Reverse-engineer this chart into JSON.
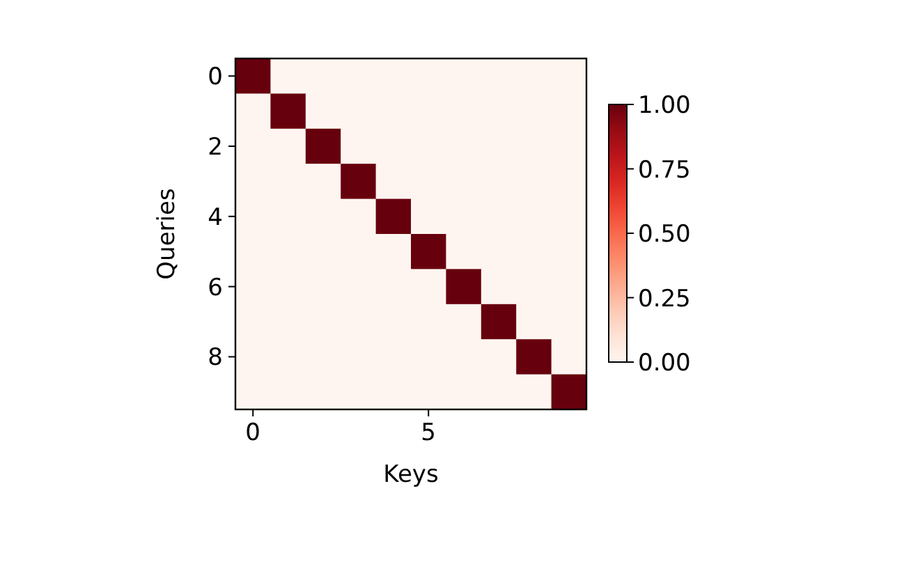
{
  "chart_data": {
    "type": "heatmap",
    "xlabel": "Keys",
    "ylabel": "Queries",
    "categories": [
      "0",
      null,
      null,
      null,
      null,
      "5",
      null,
      null,
      null,
      null
    ],
    "y_categories": [
      "0",
      null,
      "2",
      null,
      "4",
      null,
      "6",
      null,
      "8",
      null
    ],
    "cells": [
      [
        1,
        0,
        0,
        0,
        0,
        0,
        0,
        0,
        0,
        0
      ],
      [
        0,
        1,
        0,
        0,
        0,
        0,
        0,
        0,
        0,
        0
      ],
      [
        0,
        0,
        1,
        0,
        0,
        0,
        0,
        0,
        0,
        0
      ],
      [
        0,
        0,
        0,
        1,
        0,
        0,
        0,
        0,
        0,
        0
      ],
      [
        0,
        0,
        0,
        0,
        1,
        0,
        0,
        0,
        0,
        0
      ],
      [
        0,
        0,
        0,
        0,
        0,
        1,
        0,
        0,
        0,
        0
      ],
      [
        0,
        0,
        0,
        0,
        0,
        0,
        1,
        0,
        0,
        0
      ],
      [
        0,
        0,
        0,
        0,
        0,
        0,
        0,
        1,
        0,
        0
      ],
      [
        0,
        0,
        0,
        0,
        0,
        0,
        0,
        0,
        1,
        0
      ],
      [
        0,
        0,
        0,
        0,
        0,
        0,
        0,
        0,
        0,
        1
      ]
    ],
    "clim": [
      0,
      1
    ],
    "cticks": [
      {
        "value": 0,
        "label": "0.00"
      },
      {
        "value": 0.25,
        "label": "0.25"
      },
      {
        "value": 0.5,
        "label": "0.50"
      },
      {
        "value": 0.75,
        "label": "0.75"
      },
      {
        "value": 1,
        "label": "1.00"
      }
    ]
  }
}
